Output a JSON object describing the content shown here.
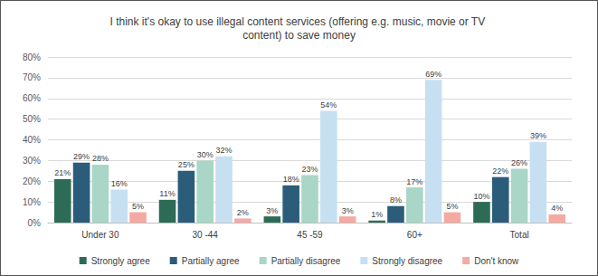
{
  "chart_data": {
    "type": "bar",
    "title": "I think it's okay to use illegal content services (offering e.g. music, movie or TV content) to save money",
    "categories": [
      "Under 30",
      "30 -44",
      "45 -59",
      "60+",
      "Total"
    ],
    "series": [
      {
        "name": "Strongly agree",
        "color": "#2e6b57",
        "values": [
          21,
          11,
          3,
          1,
          10
        ],
        "value_labels": [
          "21%",
          "11%",
          "3%",
          "1%",
          "10%"
        ]
      },
      {
        "name": "Partially agree",
        "color": "#2b5d7a",
        "values": [
          29,
          25,
          18,
          8,
          22
        ],
        "value_labels": [
          "29%",
          "25%",
          "18%",
          "8%",
          "22%"
        ]
      },
      {
        "name": "Partially disagree",
        "color": "#a9d6c6",
        "values": [
          28,
          30,
          23,
          17,
          26
        ],
        "value_labels": [
          "28%",
          "30%",
          "23%",
          "17%",
          "26%"
        ]
      },
      {
        "name": "Strongly disagree",
        "color": "#c6e0f2",
        "values": [
          16,
          32,
          54,
          69,
          39
        ],
        "value_labels": [
          "16%",
          "32%",
          "54%",
          "69%",
          "39%"
        ]
      },
      {
        "name": "Don't know",
        "color": "#f4aaa2",
        "values": [
          5,
          2,
          3,
          5,
          4
        ],
        "value_labels": [
          "5%",
          "2%",
          "3%",
          "5%",
          "4%"
        ]
      }
    ],
    "ylim": [
      0,
      80
    ],
    "yticks": [
      {
        "value": 0,
        "label": "0%"
      },
      {
        "value": 10,
        "label": "10%"
      },
      {
        "value": 20,
        "label": "20%"
      },
      {
        "value": 30,
        "label": "30%"
      },
      {
        "value": 40,
        "label": "40%"
      },
      {
        "value": 50,
        "label": "50%"
      },
      {
        "value": 60,
        "label": "60%"
      },
      {
        "value": 70,
        "label": "70%"
      },
      {
        "value": 80,
        "label": "80%"
      }
    ],
    "grid": true,
    "legend": "bottom",
    "data_labels": true
  }
}
